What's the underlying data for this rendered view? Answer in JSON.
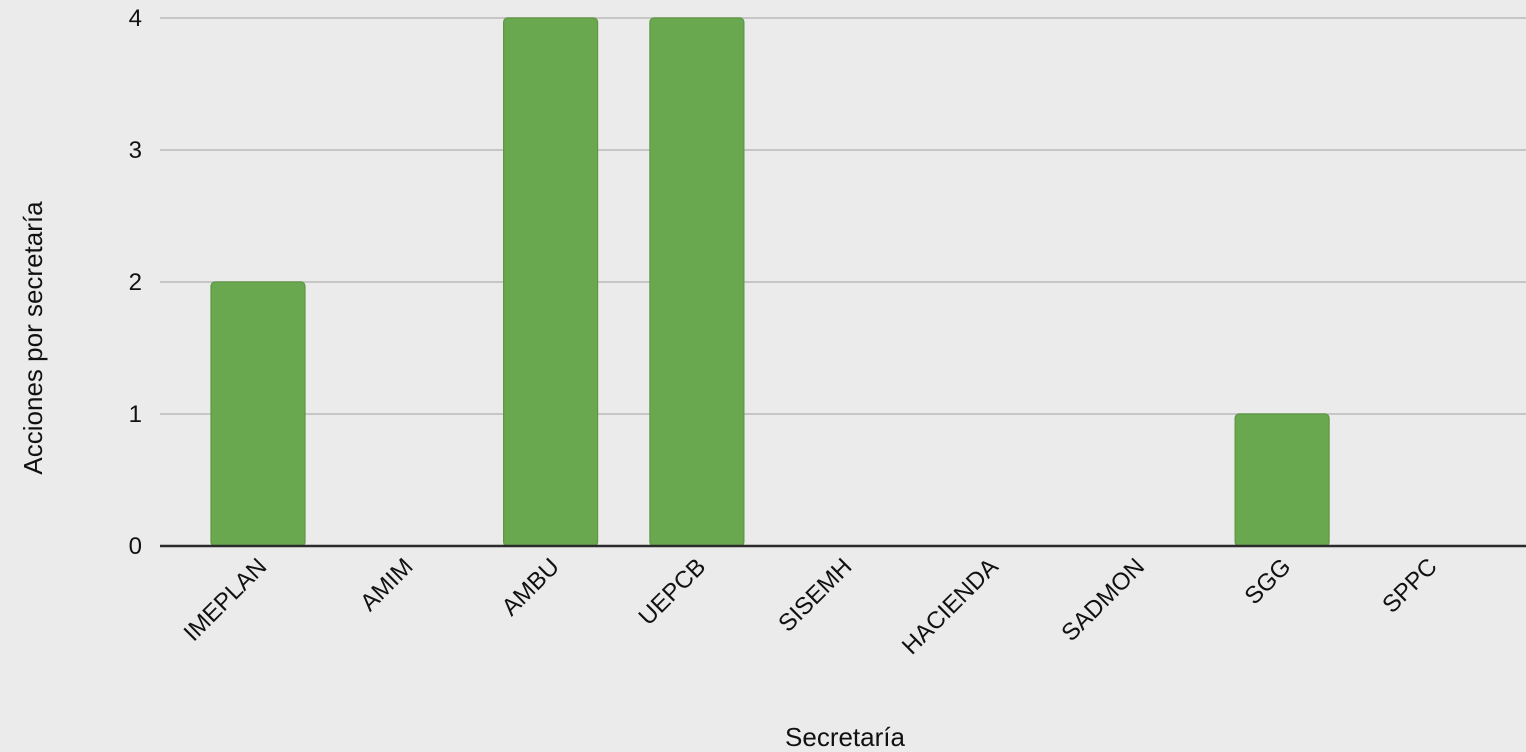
{
  "chart_data": {
    "type": "bar",
    "categories": [
      "IMEPLAN",
      "AMIM",
      "AMBU",
      "UEPCB",
      "SISEMH",
      "HACIENDA",
      "SADMON",
      "SGG",
      "SPPC"
    ],
    "values": [
      2,
      0,
      4,
      4,
      0,
      0,
      0,
      1,
      0
    ],
    "xlabel": "Secretaría",
    "ylabel": "Acciones por secretaría",
    "ylim": [
      0,
      4
    ],
    "yticks": [
      0,
      1,
      2,
      3,
      4
    ],
    "grid": true,
    "legend": "none",
    "colors": {
      "bar_fill": "#6aa84f",
      "bar_stroke": "#5e9744",
      "background": "#ebebeb",
      "grid": "#c6c6c6",
      "axis": "#2b2b2b"
    }
  }
}
